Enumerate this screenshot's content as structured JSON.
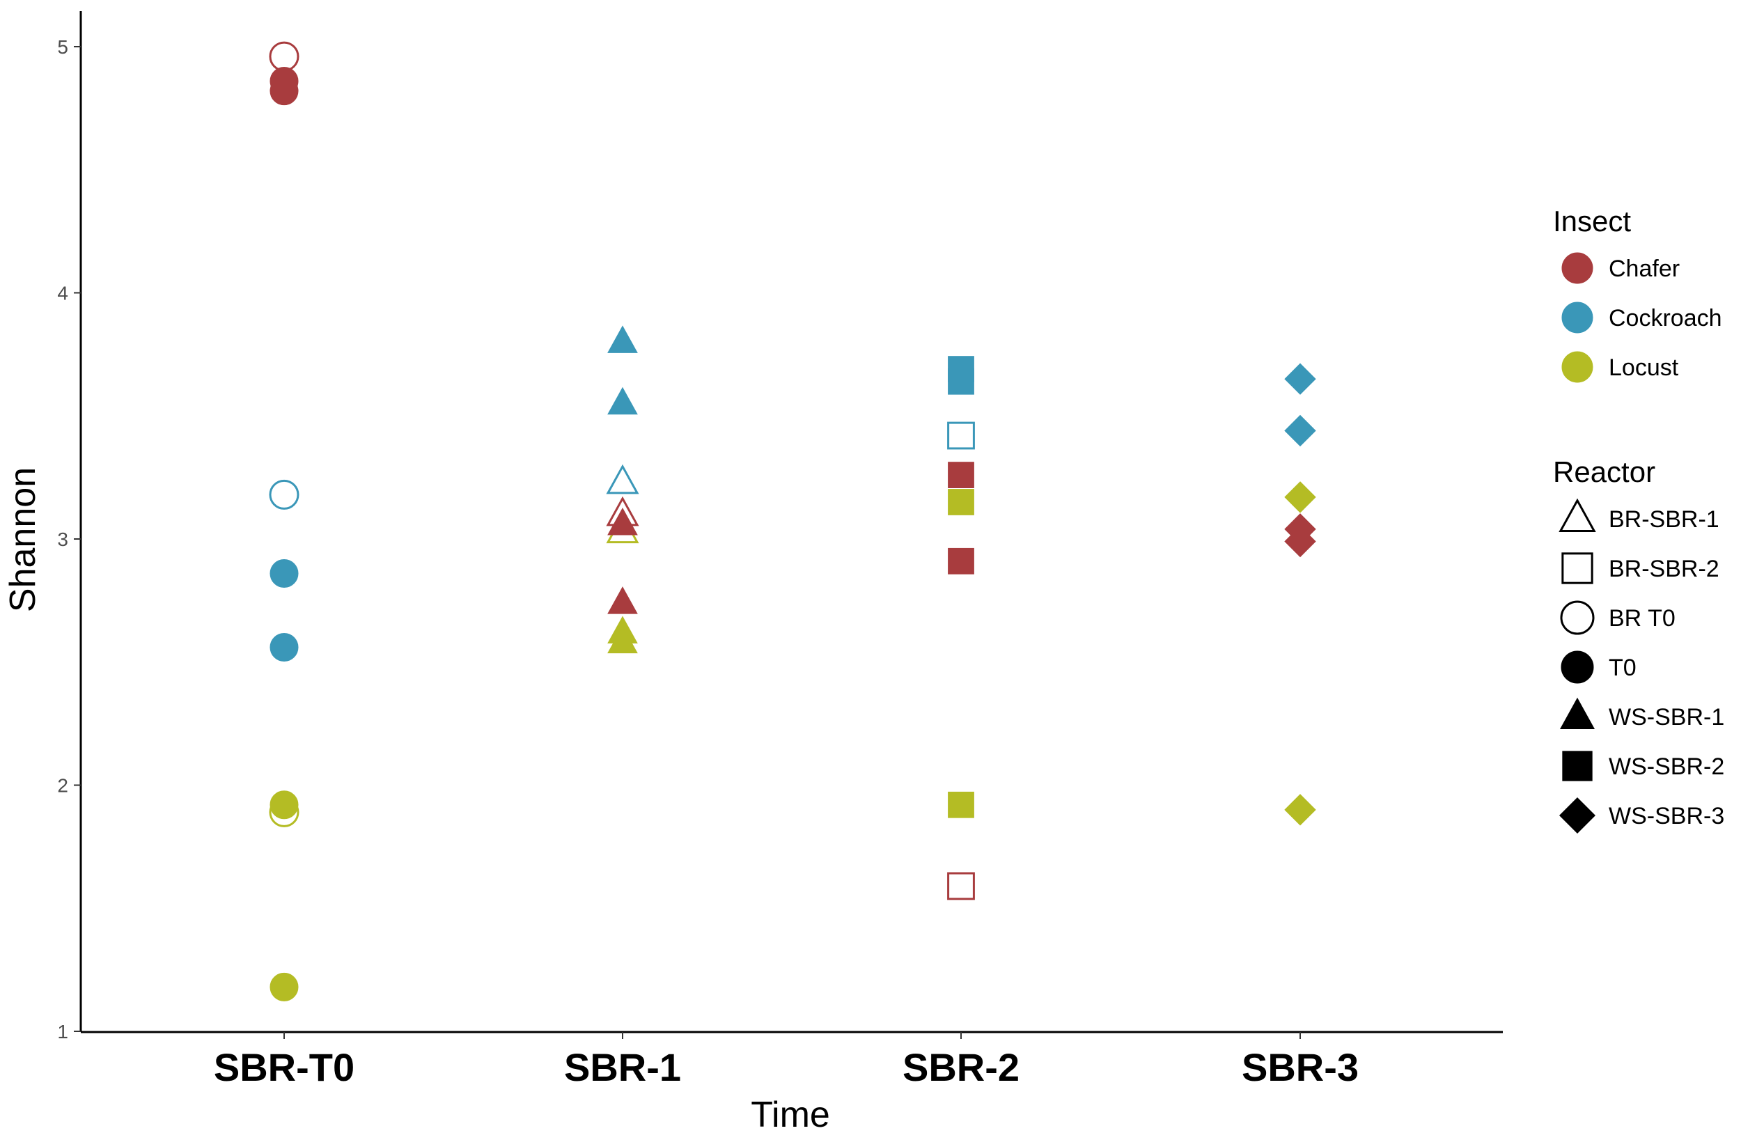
{
  "chart_data": {
    "type": "scatter",
    "title": "",
    "xlabel": "Time",
    "ylabel": "Shannon",
    "ylim": [
      1,
      5.15
    ],
    "yticks": [
      1,
      2,
      3,
      4,
      5
    ],
    "grid": false,
    "legend_position": "right",
    "categories": [
      "SBR-T0",
      "SBR-1",
      "SBR-2",
      "SBR-3"
    ],
    "color_legend": {
      "title": "Insect",
      "entries": [
        {
          "name": "Chafer",
          "color": "#A83C3E"
        },
        {
          "name": "Cockroach",
          "color": "#3A97B8"
        },
        {
          "name": "Locust",
          "color": "#B4BC24"
        }
      ]
    },
    "shape_legend": {
      "title": "Reactor",
      "entries": [
        {
          "name": "BR-SBR-1",
          "shape": "triangle-open"
        },
        {
          "name": "BR-SBR-2",
          "shape": "square-open"
        },
        {
          "name": "BR T0",
          "shape": "circle-open"
        },
        {
          "name": "T0",
          "shape": "circle"
        },
        {
          "name": "WS-SBR-1",
          "shape": "triangle"
        },
        {
          "name": "WS-SBR-2",
          "shape": "square"
        },
        {
          "name": "WS-SBR-3",
          "shape": "diamond"
        }
      ]
    },
    "points": [
      {
        "x": "SBR-T0",
        "y": 4.96,
        "insect": "Chafer",
        "reactor": "BR T0"
      },
      {
        "x": "SBR-T0",
        "y": 4.86,
        "insect": "Chafer",
        "reactor": "T0"
      },
      {
        "x": "SBR-T0",
        "y": 4.82,
        "insect": "Chafer",
        "reactor": "T0"
      },
      {
        "x": "SBR-T0",
        "y": 3.18,
        "insect": "Cockroach",
        "reactor": "BR T0"
      },
      {
        "x": "SBR-T0",
        "y": 2.86,
        "insect": "Cockroach",
        "reactor": "T0"
      },
      {
        "x": "SBR-T0",
        "y": 2.56,
        "insect": "Cockroach",
        "reactor": "T0"
      },
      {
        "x": "SBR-T0",
        "y": 1.89,
        "insect": "Locust",
        "reactor": "BR T0"
      },
      {
        "x": "SBR-T0",
        "y": 1.92,
        "insect": "Locust",
        "reactor": "T0"
      },
      {
        "x": "SBR-T0",
        "y": 1.18,
        "insect": "Locust",
        "reactor": "T0"
      },
      {
        "x": "SBR-1",
        "y": 3.8,
        "insect": "Cockroach",
        "reactor": "WS-SBR-1"
      },
      {
        "x": "SBR-1",
        "y": 3.55,
        "insect": "Cockroach",
        "reactor": "WS-SBR-1"
      },
      {
        "x": "SBR-1",
        "y": 3.23,
        "insect": "Cockroach",
        "reactor": "BR-SBR-1"
      },
      {
        "x": "SBR-1",
        "y": 3.1,
        "insect": "Chafer",
        "reactor": "BR-SBR-1"
      },
      {
        "x": "SBR-1",
        "y": 3.03,
        "insect": "Locust",
        "reactor": "BR-SBR-1"
      },
      {
        "x": "SBR-1",
        "y": 3.06,
        "insect": "Chafer",
        "reactor": "WS-SBR-1"
      },
      {
        "x": "SBR-1",
        "y": 2.74,
        "insect": "Chafer",
        "reactor": "WS-SBR-1"
      },
      {
        "x": "SBR-1",
        "y": 2.62,
        "insect": "Locust",
        "reactor": "WS-SBR-1"
      },
      {
        "x": "SBR-1",
        "y": 2.58,
        "insect": "Locust",
        "reactor": "WS-SBR-1"
      },
      {
        "x": "SBR-2",
        "y": 3.69,
        "insect": "Cockroach",
        "reactor": "WS-SBR-2"
      },
      {
        "x": "SBR-2",
        "y": 3.64,
        "insect": "Cockroach",
        "reactor": "WS-SBR-2"
      },
      {
        "x": "SBR-2",
        "y": 3.42,
        "insect": "Cockroach",
        "reactor": "BR-SBR-2"
      },
      {
        "x": "SBR-2",
        "y": 3.26,
        "insect": "Chafer",
        "reactor": "WS-SBR-2"
      },
      {
        "x": "SBR-2",
        "y": 3.15,
        "insect": "Locust",
        "reactor": "WS-SBR-2"
      },
      {
        "x": "SBR-2",
        "y": 2.91,
        "insect": "Chafer",
        "reactor": "WS-SBR-2"
      },
      {
        "x": "SBR-2",
        "y": 1.92,
        "insect": "Locust",
        "reactor": "WS-SBR-2"
      },
      {
        "x": "SBR-2",
        "y": 1.59,
        "insect": "Chafer",
        "reactor": "BR-SBR-2"
      },
      {
        "x": "SBR-3",
        "y": 3.65,
        "insect": "Cockroach",
        "reactor": "WS-SBR-3"
      },
      {
        "x": "SBR-3",
        "y": 3.44,
        "insect": "Cockroach",
        "reactor": "WS-SBR-3"
      },
      {
        "x": "SBR-3",
        "y": 3.17,
        "insect": "Locust",
        "reactor": "WS-SBR-3"
      },
      {
        "x": "SBR-3",
        "y": 3.04,
        "insect": "Chafer",
        "reactor": "WS-SBR-3"
      },
      {
        "x": "SBR-3",
        "y": 2.99,
        "insect": "Chafer",
        "reactor": "WS-SBR-3"
      },
      {
        "x": "SBR-3",
        "y": 1.9,
        "insect": "Locust",
        "reactor": "WS-SBR-3"
      }
    ]
  }
}
